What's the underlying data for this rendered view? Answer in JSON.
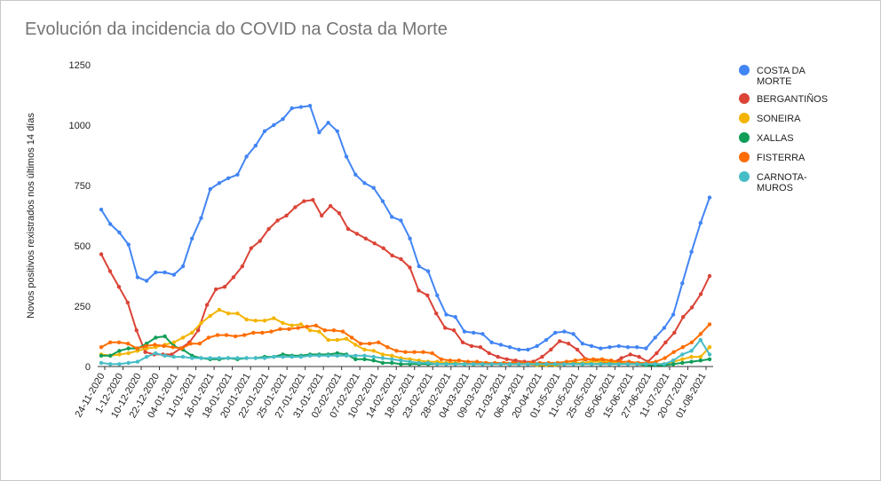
{
  "chart_data": {
    "type": "line",
    "title": "Evolución da incidencia do COVID na Costa da Morte",
    "ylabel": "Novos positivos rexistrados nos últimos 14 días",
    "xlabel": "",
    "ylim": [
      0,
      1250
    ],
    "yticks": [
      0,
      250,
      500,
      750,
      1000,
      1250
    ],
    "grid": false,
    "legend_position": "right",
    "x_tick_labels": [
      "24-11-2020",
      "1-12-2020",
      "10-12-2020",
      "22-12-2020",
      "04-01-2021",
      "11-01-2021",
      "16-01-2021",
      "18-01-2021",
      "20-01-2021",
      "22-01-2021",
      "25-01-2021",
      "27-01-2021",
      "31-01-2021",
      "02-02-2021",
      "07-02-2021",
      "10-02-2021",
      "14-02-2021",
      "18-02-2021",
      "23-02-2021",
      "28-02-2021",
      "04-03-2021",
      "09-03-2021",
      "21-03-2021",
      "06-04-2021",
      "20-04-2021",
      "01-05-2021",
      "11-05-2021",
      "25-05-2021",
      "05-06-2021",
      "15-06-2021",
      "27-06-2021",
      "11-07-2021",
      "20-07-2021",
      "01-08-2021"
    ],
    "series": [
      {
        "name": "COSTA DA MORTE",
        "color": "#4285f4",
        "values": [
          650,
          590,
          555,
          505,
          370,
          355,
          390,
          390,
          380,
          415,
          530,
          615,
          735,
          760,
          780,
          795,
          870,
          915,
          975,
          1000,
          1025,
          1070,
          1075,
          1080,
          970,
          1010,
          975,
          870,
          795,
          760,
          740,
          685,
          620,
          605,
          530,
          415,
          395,
          295,
          215,
          205,
          145,
          140,
          135,
          100,
          90,
          80,
          70,
          70,
          85,
          110,
          140,
          145,
          135,
          95,
          85,
          75,
          80,
          85,
          80,
          80,
          75,
          120,
          160,
          215,
          345,
          475,
          595,
          700
        ]
      },
      {
        "name": "BERGANTIÑOS",
        "color": "#db4437",
        "values": [
          465,
          395,
          330,
          265,
          150,
          60,
          50,
          50,
          50,
          75,
          100,
          150,
          255,
          320,
          330,
          370,
          415,
          490,
          520,
          570,
          605,
          625,
          660,
          685,
          690,
          625,
          665,
          635,
          570,
          550,
          530,
          510,
          490,
          460,
          445,
          410,
          315,
          295,
          220,
          160,
          150,
          100,
          85,
          80,
          55,
          40,
          30,
          25,
          20,
          20,
          40,
          70,
          105,
          95,
          70,
          30,
          25,
          20,
          15,
          35,
          50,
          40,
          20,
          55,
          100,
          140,
          205,
          245,
          300,
          375
        ]
      },
      {
        "name": "SONEIRA",
        "color": "#f4b400",
        "values": [
          50,
          45,
          50,
          55,
          65,
          75,
          80,
          90,
          100,
          120,
          140,
          180,
          210,
          235,
          220,
          220,
          195,
          190,
          190,
          200,
          180,
          170,
          175,
          150,
          145,
          110,
          110,
          115,
          90,
          70,
          65,
          50,
          45,
          35,
          30,
          25,
          20,
          20,
          15,
          15,
          10,
          10,
          10,
          10,
          10,
          10,
          10,
          10,
          5,
          5,
          5,
          10,
          15,
          15,
          20,
          20,
          20,
          15,
          10,
          10,
          5,
          10,
          10,
          20,
          30,
          40,
          40,
          80
        ]
      },
      {
        "name": "XALLAS",
        "color": "#0f9d58",
        "values": [
          45,
          45,
          65,
          75,
          75,
          95,
          120,
          125,
          85,
          70,
          45,
          35,
          30,
          30,
          35,
          30,
          35,
          35,
          40,
          40,
          50,
          45,
          45,
          50,
          50,
          50,
          55,
          50,
          30,
          30,
          25,
          15,
          15,
          10,
          10,
          10,
          10,
          10,
          10,
          10,
          10,
          10,
          10,
          10,
          10,
          10,
          10,
          10,
          10,
          10,
          10,
          10,
          10,
          10,
          10,
          10,
          10,
          10,
          10,
          10,
          5,
          5,
          5,
          10,
          15,
          20,
          25,
          30
        ]
      },
      {
        "name": "FISTERRA",
        "color": "#ff6d00",
        "values": [
          80,
          100,
          100,
          95,
          75,
          85,
          90,
          85,
          80,
          75,
          95,
          95,
          120,
          130,
          130,
          125,
          130,
          140,
          140,
          145,
          155,
          155,
          160,
          165,
          170,
          150,
          150,
          145,
          120,
          95,
          95,
          100,
          80,
          65,
          60,
          60,
          60,
          55,
          30,
          25,
          25,
          20,
          20,
          15,
          15,
          15,
          15,
          15,
          15,
          15,
          15,
          15,
          20,
          25,
          30,
          30,
          30,
          25,
          20,
          20,
          15,
          15,
          20,
          35,
          60,
          80,
          100,
          135,
          175
        ]
      },
      {
        "name": "CARNOTA-\nMUROS",
        "color": "#46bdc6",
        "values": [
          15,
          10,
          10,
          15,
          20,
          40,
          55,
          45,
          40,
          40,
          35,
          35,
          35,
          35,
          35,
          35,
          35,
          35,
          35,
          40,
          40,
          40,
          40,
          45,
          45,
          45,
          45,
          45,
          45,
          45,
          40,
          35,
          30,
          25,
          20,
          15,
          15,
          10,
          10,
          10,
          10,
          10,
          10,
          10,
          10,
          10,
          10,
          10,
          10,
          10,
          10,
          10,
          10,
          10,
          10,
          10,
          10,
          10,
          10,
          10,
          10,
          10,
          10,
          25,
          50,
          65,
          110,
          50
        ]
      }
    ],
    "legend_labels": [
      [
        "COSTA DA",
        "MORTE"
      ],
      [
        "BERGANTIÑOS"
      ],
      [
        "SONEIRA"
      ],
      [
        "XALLAS"
      ],
      [
        "FISTERRA"
      ],
      [
        "CARNOTA-",
        "MUROS"
      ]
    ]
  }
}
